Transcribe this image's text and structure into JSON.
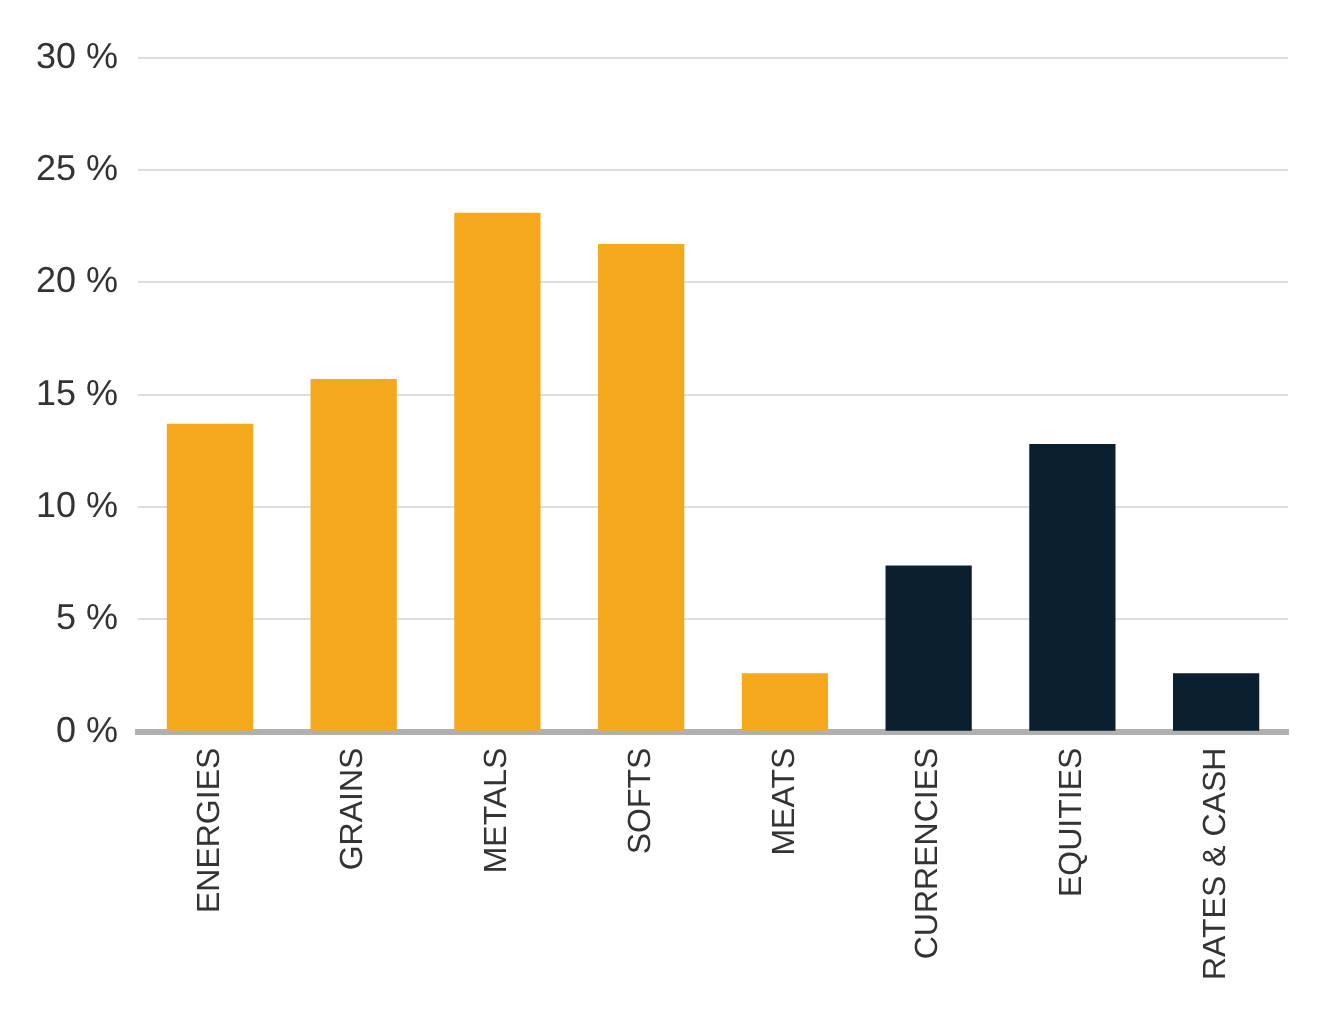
{
  "chart_data": {
    "type": "bar",
    "categories": [
      "ENERGIES",
      "GRAINS",
      "METALS",
      "SOFTS",
      "MEATS",
      "CURRENCIES",
      "EQUITIES",
      "RATES & CASH"
    ],
    "values": [
      13.7,
      15.7,
      23.1,
      21.7,
      2.6,
      7.4,
      12.8,
      2.6
    ],
    "colors": [
      "#f5a81c",
      "#f5a81c",
      "#f5a81c",
      "#f5a81c",
      "#f5a81c",
      "#0b1f2e",
      "#0b1f2e",
      "#0b1f2e"
    ],
    "ylim": [
      0,
      30
    ],
    "yticks": [
      {
        "value": 0,
        "label": "0 %"
      },
      {
        "value": 5,
        "label": "5 %"
      },
      {
        "value": 10,
        "label": "10 %"
      },
      {
        "value": 15,
        "label": "15 %"
      },
      {
        "value": 20,
        "label": "20 %"
      },
      {
        "value": 25,
        "label": "25 %"
      },
      {
        "value": 30,
        "label": "30 %"
      }
    ],
    "grid": "y",
    "legend": false
  }
}
